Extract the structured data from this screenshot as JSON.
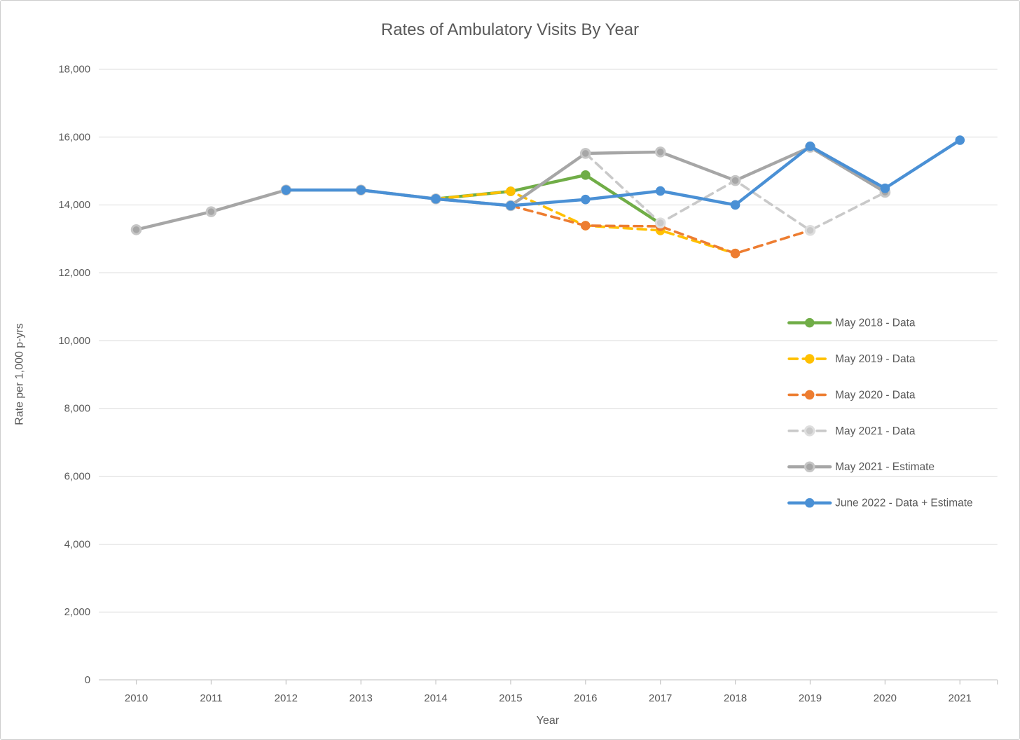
{
  "page": {
    "background": "#ffffff",
    "frame_border_color": "#cdcdcd"
  },
  "chart_data": {
    "type": "line",
    "title": "Rates of Ambulatory Visits By Year",
    "xlabel": "Year",
    "ylabel": "Rate per 1,000 p-yrs",
    "categories": [
      2010,
      2011,
      2012,
      2013,
      2014,
      2015,
      2016,
      2017,
      2018,
      2019,
      2020,
      2021
    ],
    "ylim": [
      0,
      18000
    ],
    "ytick_step": 2000,
    "ytick_labels": [
      "0",
      "2,000",
      "4,000",
      "6,000",
      "8,000",
      "10,000",
      "12,000",
      "14,000",
      "16,000",
      "18,000"
    ],
    "grid": "horizontal",
    "legend_position": "right-middle",
    "text_color": "#595959",
    "gridline_color": "#d9d9d9",
    "axis_line_color": "#c6c6c6",
    "series": [
      {
        "name": "May 2018 - Data",
        "color": "#70ad47",
        "dash": false,
        "marker_ring": null,
        "points": [
          [
            2014,
            14180
          ],
          [
            2015,
            14400
          ],
          [
            2016,
            14880
          ],
          [
            2017,
            13450
          ]
        ]
      },
      {
        "name": "May 2019 - Data",
        "color": "#ffc000",
        "dash": true,
        "marker_ring": null,
        "points": [
          [
            2014,
            14180
          ],
          [
            2015,
            14400
          ],
          [
            2016,
            13390
          ],
          [
            2017,
            13250
          ],
          [
            2018,
            12570
          ]
        ]
      },
      {
        "name": "May 2020 - Data",
        "color": "#ed7d31",
        "dash": true,
        "marker_ring": null,
        "points": [
          [
            2015,
            13980
          ],
          [
            2016,
            13390
          ],
          [
            2017,
            13370
          ],
          [
            2018,
            12570
          ],
          [
            2019,
            13250
          ]
        ]
      },
      {
        "name": "May 2021 - Data",
        "color": "#c9c9c9",
        "dash": true,
        "marker_ring": "#dedede",
        "points": [
          [
            2016,
            15520
          ],
          [
            2017,
            13470
          ],
          [
            2018,
            14720
          ],
          [
            2019,
            13250
          ],
          [
            2020,
            14370
          ]
        ]
      },
      {
        "name": "May 2021 - Estimate",
        "color": "#a6a6a6",
        "dash": false,
        "marker_ring": "#c6c6c6",
        "points": [
          [
            2010,
            13270
          ],
          [
            2011,
            13800
          ],
          [
            2012,
            14440
          ],
          [
            2013,
            14440
          ],
          [
            2014,
            14180
          ],
          [
            2015,
            13980
          ],
          [
            2016,
            15520
          ],
          [
            2017,
            15560
          ],
          [
            2018,
            14720
          ],
          [
            2019,
            15700
          ],
          [
            2020,
            14380
          ]
        ]
      },
      {
        "name": "June 2022 - Data + Estimate",
        "color": "#4a90d5",
        "dash": false,
        "marker_ring": null,
        "points": [
          [
            2012,
            14440
          ],
          [
            2013,
            14440
          ],
          [
            2014,
            14180
          ],
          [
            2015,
            13980
          ],
          [
            2016,
            14160
          ],
          [
            2017,
            14410
          ],
          [
            2018,
            14000
          ],
          [
            2019,
            15730
          ],
          [
            2020,
            14490
          ],
          [
            2021,
            15910
          ]
        ]
      }
    ]
  }
}
